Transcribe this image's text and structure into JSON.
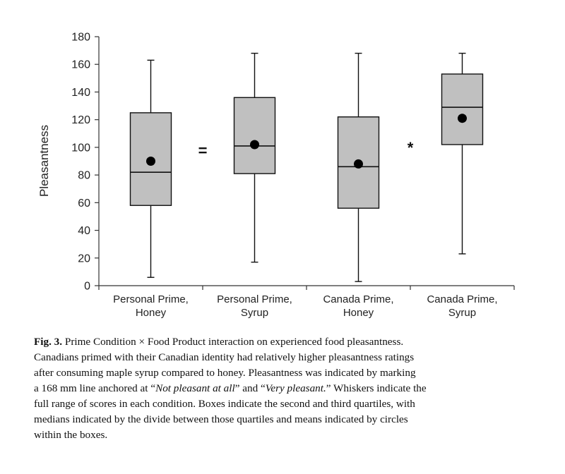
{
  "chart_data": {
    "type": "box",
    "ylabel": "Pleasantness",
    "ylim": [
      0,
      180
    ],
    "yticks": [
      0,
      20,
      40,
      60,
      80,
      100,
      120,
      140,
      160,
      180
    ],
    "categories": [
      [
        "Personal Prime,",
        "Honey"
      ],
      [
        "Personal Prime,",
        "Syrup"
      ],
      [
        "Canada Prime,",
        "Honey"
      ],
      [
        "Canada Prime,",
        "Syrup"
      ]
    ],
    "boxes": [
      {
        "min": 6,
        "q1": 58,
        "median": 82,
        "q3": 125,
        "max": 163,
        "mean": 90
      },
      {
        "min": 17,
        "q1": 81,
        "median": 101,
        "q3": 136,
        "max": 168,
        "mean": 102
      },
      {
        "min": 3,
        "q1": 56,
        "median": 86,
        "q3": 122,
        "max": 168,
        "mean": 88
      },
      {
        "min": 23,
        "q1": 102,
        "median": 129,
        "q3": 153,
        "max": 168,
        "mean": 121
      }
    ],
    "annotations": [
      {
        "text": "=",
        "between": [
          0,
          1
        ],
        "y": 98
      },
      {
        "text": "*",
        "between": [
          2,
          3
        ],
        "y": 100
      }
    ],
    "box_fill": "#c0c0c0",
    "mean_color": "#000000",
    "grid": false
  },
  "caption": {
    "fig_label": "Fig. 3.",
    "line1": "Prime Condition × Food Product interaction on experienced food pleasantness.",
    "line2": "Canadians primed with their Canadian identity had relatively higher pleasantness ratings",
    "line3": "after consuming maple syrup compared to honey. Pleasantness was indicated by marking",
    "line4_a": "a 168 mm line anchored at “",
    "line4_italic1": "Not pleasant at all",
    "line4_b": "” and “",
    "line4_italic2": "Very pleasant.",
    "line4_c": "” Whiskers indicate the",
    "line5": "full range of scores in each condition. Boxes indicate the second and third quartiles, with",
    "line6": "medians indicated by the divide between those quartiles and means indicated by circles",
    "line7": "within the boxes."
  }
}
